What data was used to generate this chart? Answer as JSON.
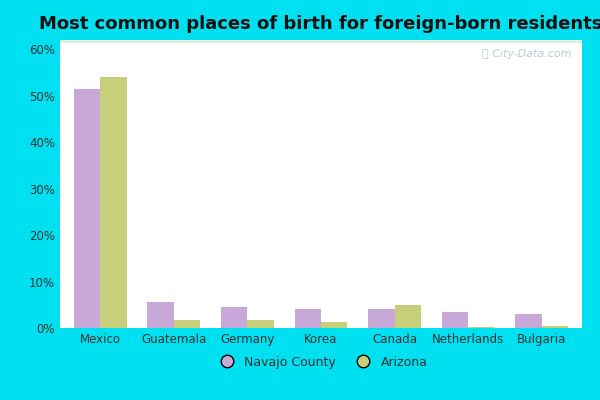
{
  "title": "Most common places of birth for foreign-born residents",
  "categories": [
    "Mexico",
    "Guatemala",
    "Germany",
    "Korea",
    "Canada",
    "Netherlands",
    "Bulgaria"
  ],
  "navajo_county": [
    51.5,
    5.5,
    4.5,
    4.0,
    4.0,
    3.5,
    3.0
  ],
  "arizona": [
    54.0,
    1.8,
    1.8,
    1.2,
    5.0,
    0.3,
    0.4
  ],
  "navajo_color": "#c8a8d8",
  "arizona_color": "#c8cf7a",
  "outer_bg": "#00e0f0",
  "grad_top": "#f5fdf5",
  "grad_bottom": "#d8f0dd",
  "ylim": [
    0,
    62
  ],
  "yticks": [
    0,
    10,
    20,
    30,
    40,
    50,
    60
  ],
  "ytick_labels": [
    "0%",
    "10%",
    "20%",
    "30%",
    "40%",
    "50%",
    "60%"
  ],
  "legend_labels": [
    "Navajo County",
    "Arizona"
  ],
  "watermark": "Ⓢ City-Data.com",
  "title_fontsize": 13,
  "bar_width": 0.36
}
